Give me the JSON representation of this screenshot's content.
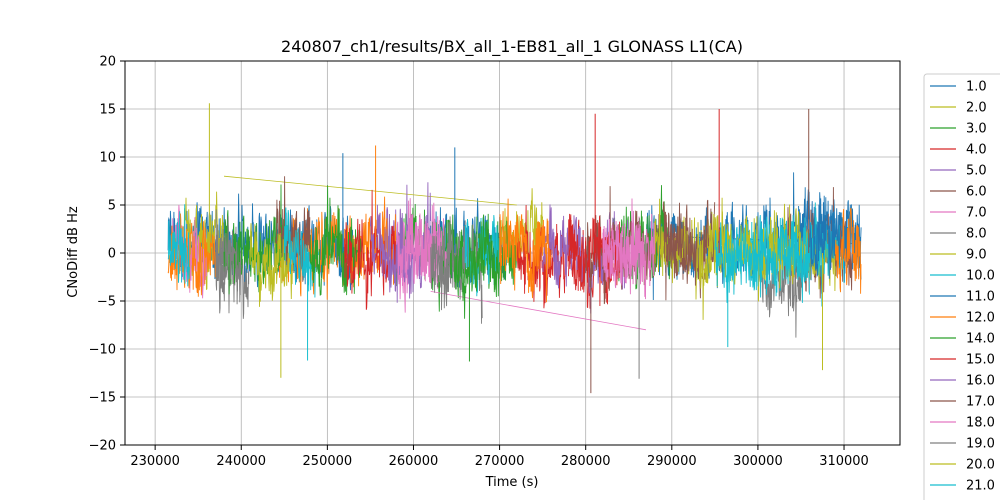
{
  "chart_data": {
    "type": "line",
    "title": "240807_ch1/results/BX_all_1-EB81_all_1 GLONASS L1(CA)",
    "xlabel": "Time (s)",
    "ylabel": "CNoDiff dB Hz",
    "xlim": [
      226500,
      316500
    ],
    "ylim": [
      -20,
      20
    ],
    "xticks": [
      230000,
      240000,
      250000,
      260000,
      270000,
      280000,
      290000,
      300000,
      310000
    ],
    "xtick_labels": [
      "230000",
      "240000",
      "250000",
      "260000",
      "270000",
      "280000",
      "290000",
      "300000",
      "310000"
    ],
    "yticks": [
      -20,
      -15,
      -10,
      -5,
      0,
      5,
      10,
      15,
      20
    ],
    "ytick_labels": [
      "−20",
      "−15",
      "−10",
      "−5",
      "0",
      "5",
      "10",
      "15",
      "20"
    ],
    "grid": true,
    "legend_position": "right-outside",
    "series": [
      {
        "name": "1.0",
        "color": "#1f77b4",
        "segments": [
          [
            231500,
            240000
          ],
          [
            262000,
            271000
          ],
          [
            287000,
            312000
          ]
        ],
        "amplitude": 2.5,
        "bias": 1.0,
        "bridge": [
          [
            288000,
            1.8
          ],
          [
            311000,
            1.0
          ]
        ]
      },
      {
        "name": "2.0",
        "color": "#bcbd22",
        "segments": [
          [
            233000,
            238000
          ],
          [
            270000,
            275000
          ]
        ],
        "amplitude": 2.5,
        "bias": 1.5,
        "bridge": [
          [
            238000,
            8.0
          ],
          [
            272000,
            5.0
          ]
        ]
      },
      {
        "name": "3.0",
        "color": "#2ca02c",
        "segments": [
          [
            258000,
            272000
          ],
          [
            283000,
            290000
          ]
        ],
        "amplitude": 2.6,
        "bias": 0.5
      },
      {
        "name": "4.0",
        "color": "#d62728",
        "segments": [
          [
            272000,
            284000
          ]
        ],
        "amplitude": 2.6,
        "bias": -1.0
      },
      {
        "name": "5.0",
        "color": "#9467bd",
        "segments": [
          [
            256000,
            262000
          ],
          [
            275000,
            285000
          ]
        ],
        "amplitude": 2.2,
        "bias": 0.5
      },
      {
        "name": "6.0",
        "color": "#8c564b",
        "segments": [
          [
            280000,
            292000
          ],
          [
            303000,
            311000
          ]
        ],
        "amplitude": 2.5,
        "bias": 0.0
      },
      {
        "name": "7.0",
        "color": "#e377c2",
        "segments": [
          [
            232000,
            236000
          ],
          [
            258000,
            264000
          ],
          [
            282000,
            287000
          ]
        ],
        "amplitude": 2.6,
        "bias": -0.5,
        "bridge": [
          [
            262000,
            -4.0
          ],
          [
            287000,
            -8.0
          ]
        ]
      },
      {
        "name": "8.0",
        "color": "#7f7f7f",
        "segments": [
          [
            237000,
            241000
          ],
          [
            262000,
            268000
          ],
          [
            300000,
            306000
          ]
        ],
        "amplitude": 2.8,
        "bias": -1.5
      },
      {
        "name": "9.0",
        "color": "#bcbd22",
        "segments": [
          [
            288000,
            297000
          ],
          [
            303000,
            309000
          ]
        ],
        "amplitude": 2.3,
        "bias": 0.0
      },
      {
        "name": "10.0",
        "color": "#17becf",
        "segments": [
          [
            245000,
            249000
          ],
          [
            266000,
            270000
          ],
          [
            296000,
            310000
          ]
        ],
        "amplitude": 2.5,
        "bias": 0.0
      },
      {
        "name": "11.0",
        "color": "#1f77b4",
        "segments": [
          [
            240000,
            253000
          ],
          [
            306000,
            312000
          ]
        ],
        "amplitude": 2.8,
        "bias": 1.0
      },
      {
        "name": "12.0",
        "color": "#ff7f0e",
        "segments": [
          [
            231500,
            237000
          ],
          [
            244000,
            258000
          ],
          [
            270000,
            276000
          ],
          [
            309000,
            312000
          ]
        ],
        "amplitude": 2.6,
        "bias": 0.5
      },
      {
        "name": "14.0",
        "color": "#2ca02c",
        "segments": [
          [
            238000,
            245000
          ],
          [
            248000,
            254000
          ],
          [
            264000,
            270000
          ]
        ],
        "amplitude": 2.5,
        "bias": 0.0
      },
      {
        "name": "15.0",
        "color": "#d62728",
        "segments": [
          [
            252000,
            258000
          ],
          [
            278000,
            284000
          ]
        ],
        "amplitude": 2.6,
        "bias": -0.5
      },
      {
        "name": "16.0",
        "color": "#9467bd",
        "segments": [
          [
            255000,
            260000
          ]
        ],
        "amplitude": 2.5,
        "bias": 0.0
      },
      {
        "name": "17.0",
        "color": "#8c564b",
        "segments": [
          [
            244000,
            248000
          ],
          [
            289000,
            295000
          ]
        ],
        "amplitude": 2.6,
        "bias": 1.0
      },
      {
        "name": "18.0",
        "color": "#e377c2",
        "segments": [
          [
            258000,
            263000
          ],
          [
            282000,
            288000
          ]
        ],
        "amplitude": 2.6,
        "bias": 0.0
      },
      {
        "name": "19.0",
        "color": "#7f7f7f",
        "segments": [
          [
            237000,
            240000
          ],
          [
            262000,
            265000
          ]
        ],
        "amplitude": 2.7,
        "bias": -1.0
      },
      {
        "name": "20.0",
        "color": "#bcbd22",
        "segments": [
          [
            241000,
            246000
          ],
          [
            293000,
            303000
          ]
        ],
        "amplitude": 2.5,
        "bias": 0.0
      },
      {
        "name": "21.0",
        "color": "#17becf",
        "segments": [
          [
            231500,
            234000
          ],
          [
            245000,
            248000
          ],
          [
            295000,
            306000
          ]
        ],
        "amplitude": 2.5,
        "bias": 0.0
      }
    ],
    "legend_entries": [
      "1.0",
      "2.0",
      "3.0",
      "4.0",
      "5.0",
      "6.0",
      "7.0",
      "8.0",
      "9.0",
      "10.0",
      "11.0",
      "12.0",
      "14.0",
      "15.0",
      "16.0",
      "17.0",
      "18.0",
      "19.0",
      "20.0",
      "21.0"
    ],
    "spikes": [
      {
        "x": 236300,
        "y": 15.6,
        "color": "#bcbd22"
      },
      {
        "x": 251800,
        "y": 10.4,
        "color": "#1f77b4"
      },
      {
        "x": 255600,
        "y": 11.2,
        "color": "#ff7f0e"
      },
      {
        "x": 264800,
        "y": 11.0,
        "color": "#1f77b4"
      },
      {
        "x": 281100,
        "y": 14.5,
        "color": "#d62728"
      },
      {
        "x": 295500,
        "y": 15.0,
        "color": "#d62728"
      },
      {
        "x": 305900,
        "y": 15.0,
        "color": "#8c564b"
      },
      {
        "x": 244600,
        "y": -13.0,
        "color": "#bcbd22"
      },
      {
        "x": 280600,
        "y": -14.6,
        "color": "#8c564b"
      },
      {
        "x": 266500,
        "y": -11.3,
        "color": "#2ca02c"
      },
      {
        "x": 307500,
        "y": -12.2,
        "color": "#bcbd22"
      },
      {
        "x": 286200,
        "y": -13.1,
        "color": "#7f7f7f"
      },
      {
        "x": 247700,
        "y": -11.2,
        "color": "#17becf"
      },
      {
        "x": 296500,
        "y": -9.8,
        "color": "#17becf"
      }
    ]
  }
}
